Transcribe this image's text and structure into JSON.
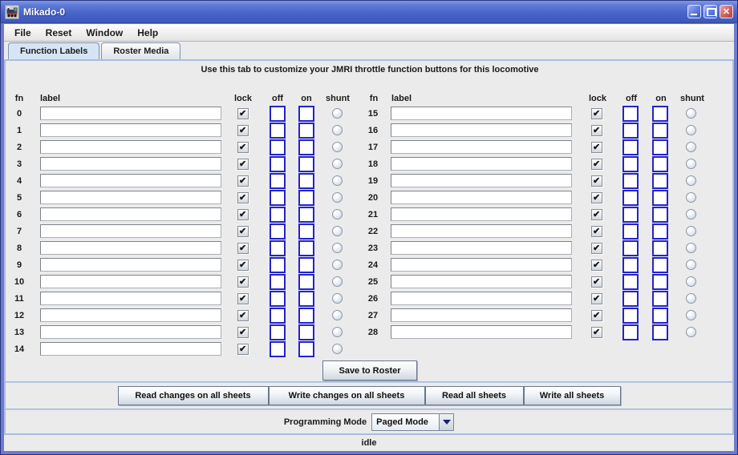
{
  "window": {
    "title": "Mikado-0"
  },
  "menu": {
    "items": [
      "File",
      "Reset",
      "Window",
      "Help"
    ]
  },
  "tabs": [
    {
      "label": "Function Labels",
      "selected": true
    },
    {
      "label": "Roster Media",
      "selected": false
    }
  ],
  "instruction": "Use this tab to customize your JMRI throttle function buttons for this locomotive",
  "column_headers": {
    "fn": "fn",
    "label": "label",
    "lock": "lock",
    "off": "off",
    "on": "on",
    "shunt": "shunt"
  },
  "functions": [
    {
      "fn": 0,
      "label": "",
      "lock": true,
      "off": "",
      "on": "",
      "shunt": false
    },
    {
      "fn": 1,
      "label": "",
      "lock": true,
      "off": "",
      "on": "",
      "shunt": false
    },
    {
      "fn": 2,
      "label": "",
      "lock": true,
      "off": "",
      "on": "",
      "shunt": false
    },
    {
      "fn": 3,
      "label": "",
      "lock": true,
      "off": "",
      "on": "",
      "shunt": false
    },
    {
      "fn": 4,
      "label": "",
      "lock": true,
      "off": "",
      "on": "",
      "shunt": false
    },
    {
      "fn": 5,
      "label": "",
      "lock": true,
      "off": "",
      "on": "",
      "shunt": false
    },
    {
      "fn": 6,
      "label": "",
      "lock": true,
      "off": "",
      "on": "",
      "shunt": false
    },
    {
      "fn": 7,
      "label": "",
      "lock": true,
      "off": "",
      "on": "",
      "shunt": false
    },
    {
      "fn": 8,
      "label": "",
      "lock": true,
      "off": "",
      "on": "",
      "shunt": false
    },
    {
      "fn": 9,
      "label": "",
      "lock": true,
      "off": "",
      "on": "",
      "shunt": false
    },
    {
      "fn": 10,
      "label": "",
      "lock": true,
      "off": "",
      "on": "",
      "shunt": false
    },
    {
      "fn": 11,
      "label": "",
      "lock": true,
      "off": "",
      "on": "",
      "shunt": false
    },
    {
      "fn": 12,
      "label": "",
      "lock": true,
      "off": "",
      "on": "",
      "shunt": false
    },
    {
      "fn": 13,
      "label": "",
      "lock": true,
      "off": "",
      "on": "",
      "shunt": false
    },
    {
      "fn": 14,
      "label": "",
      "lock": true,
      "off": "",
      "on": "",
      "shunt": false
    },
    {
      "fn": 15,
      "label": "",
      "lock": true,
      "off": "",
      "on": "",
      "shunt": false
    },
    {
      "fn": 16,
      "label": "",
      "lock": true,
      "off": "",
      "on": "",
      "shunt": false
    },
    {
      "fn": 17,
      "label": "",
      "lock": true,
      "off": "",
      "on": "",
      "shunt": false
    },
    {
      "fn": 18,
      "label": "",
      "lock": true,
      "off": "",
      "on": "",
      "shunt": false
    },
    {
      "fn": 19,
      "label": "",
      "lock": true,
      "off": "",
      "on": "",
      "shunt": false
    },
    {
      "fn": 20,
      "label": "",
      "lock": true,
      "off": "",
      "on": "",
      "shunt": false
    },
    {
      "fn": 21,
      "label": "",
      "lock": true,
      "off": "",
      "on": "",
      "shunt": false
    },
    {
      "fn": 22,
      "label": "",
      "lock": true,
      "off": "",
      "on": "",
      "shunt": false
    },
    {
      "fn": 23,
      "label": "",
      "lock": true,
      "off": "",
      "on": "",
      "shunt": false
    },
    {
      "fn": 24,
      "label": "",
      "lock": true,
      "off": "",
      "on": "",
      "shunt": false
    },
    {
      "fn": 25,
      "label": "",
      "lock": true,
      "off": "",
      "on": "",
      "shunt": false
    },
    {
      "fn": 26,
      "label": "",
      "lock": true,
      "off": "",
      "on": "",
      "shunt": false
    },
    {
      "fn": 27,
      "label": "",
      "lock": true,
      "off": "",
      "on": "",
      "shunt": false
    },
    {
      "fn": 28,
      "label": "",
      "lock": true,
      "off": "",
      "on": "",
      "shunt": false
    }
  ],
  "actions": {
    "save": "Save to Roster",
    "read_changes": "Read changes on all sheets",
    "write_changes": "Write changes on all sheets",
    "read_all": "Read all sheets",
    "write_all": "Write all sheets"
  },
  "programming_mode": {
    "label": "Programming Mode",
    "value": "Paged Mode"
  },
  "status": "idle",
  "colors": {
    "titlebar_top": "#8299e2",
    "titlebar_bottom": "#3e58bb",
    "frame": "#6d7bce",
    "panel_bg": "#ebebeb",
    "tab_selected_bg": "#d5e5f5",
    "accent_field_border": "#2323cb",
    "separator": "#a9bede"
  }
}
